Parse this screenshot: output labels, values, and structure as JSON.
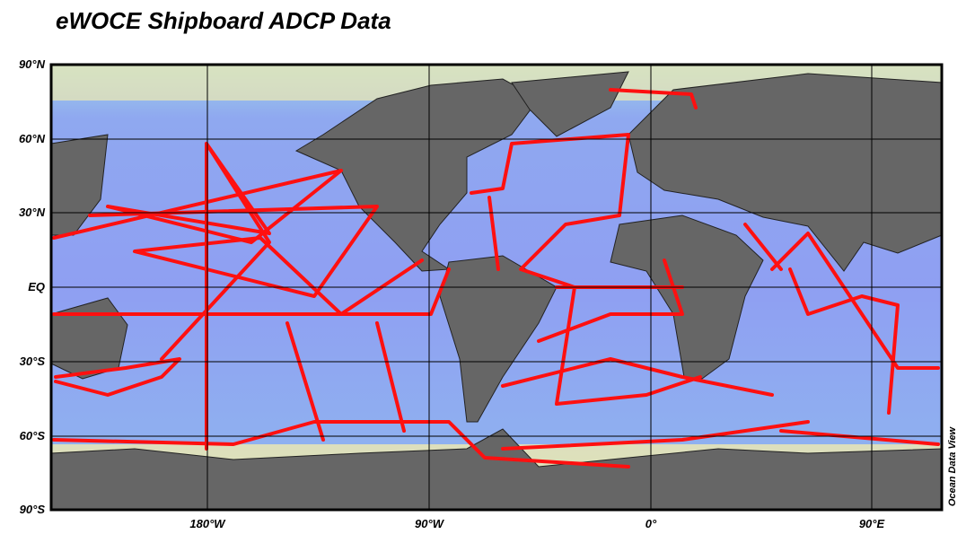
{
  "title": "eWOCE Shipboard ADCP Data",
  "lat_labels": [
    "90°N",
    "60°N",
    "30°N",
    "EQ",
    "30°S",
    "60°S",
    "90°S"
  ],
  "lon_labels": [
    "180°W",
    "90°W",
    "0°",
    "90°E"
  ],
  "credit": "Ocean Data View"
}
